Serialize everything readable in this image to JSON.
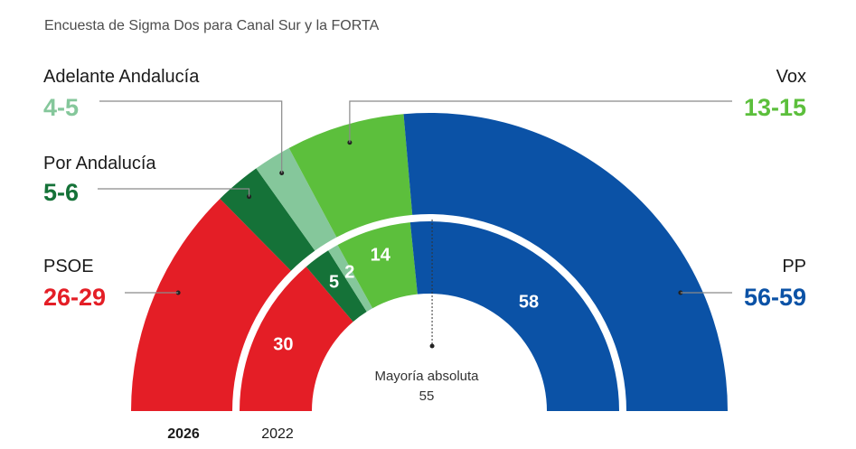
{
  "subtitle": "Encuesta de Sigma Dos para Canal Sur y la FORTA",
  "chart_data": {
    "type": "parliament-semicircle",
    "total_seats": 109,
    "majority": {
      "label": "Mayoría absoluta",
      "value": 55
    },
    "rings": [
      {
        "label": "2026",
        "segments": [
          {
            "party": "PSOE",
            "display": "26-29",
            "seats": 27.5,
            "color": "#e41e26"
          },
          {
            "party": "Por Andalucía",
            "display": "5-6",
            "seats": 5.5,
            "color": "#157238"
          },
          {
            "party": "Adelante Andalucía",
            "display": "4-5",
            "seats": 4.5,
            "color": "#85c79b"
          },
          {
            "party": "Vox",
            "display": "13-15",
            "seats": 14,
            "color": "#5cbf3c"
          },
          {
            "party": "PP",
            "display": "56-59",
            "seats": 57.5,
            "color": "#0b52a6"
          }
        ]
      },
      {
        "label": "2022",
        "segments": [
          {
            "party": "PSOE",
            "display": "30",
            "seats": 30,
            "color": "#e41e26"
          },
          {
            "party": "Por Andalucía",
            "display": "5",
            "seats": 5,
            "color": "#157238"
          },
          {
            "party": "Adelante Andalucía",
            "display": "2",
            "seats": 2,
            "color": "#85c79b"
          },
          {
            "party": "Vox",
            "display": "14",
            "seats": 14,
            "color": "#5cbf3c"
          },
          {
            "party": "PP",
            "display": "58",
            "seats": 58,
            "color": "#0b52a6"
          }
        ]
      }
    ]
  }
}
